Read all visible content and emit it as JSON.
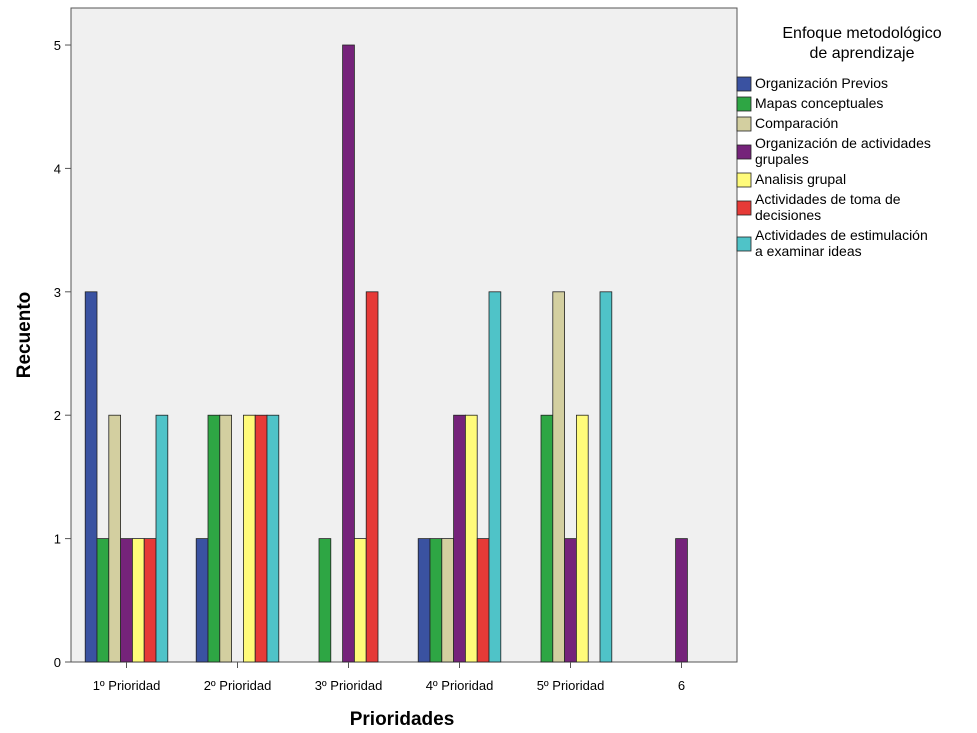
{
  "chart_data": {
    "type": "bar",
    "xlabel": "Prioridades",
    "ylabel": "Recuento",
    "categories": [
      "1º Prioridad",
      "2º Prioridad",
      "3º Prioridad",
      "4º Prioridad",
      "5º Prioridad",
      "6"
    ],
    "y_ticks": [
      "0",
      "1",
      "2",
      "3",
      "4",
      "5"
    ],
    "ylim": [
      0,
      5.3
    ],
    "grid": false,
    "legend": {
      "title_lines": [
        "Enfoque metodológico",
        "de aprendizaje"
      ],
      "placement": "right"
    },
    "series": [
      {
        "name": "Organización Previos",
        "label_lines": [
          "Organización Previos"
        ],
        "color": "#3a52a1",
        "values": [
          3,
          1,
          0,
          1,
          0,
          0
        ]
      },
      {
        "name": "Mapas conceptuales",
        "label_lines": [
          "Mapas conceptuales"
        ],
        "color": "#2ea644",
        "values": [
          1,
          2,
          1,
          1,
          2,
          0
        ]
      },
      {
        "name": "Comparación",
        "label_lines": [
          "Comparación"
        ],
        "color": "#d3cfa0",
        "values": [
          2,
          2,
          0,
          1,
          3,
          0
        ]
      },
      {
        "name": "Organización de actividades grupales",
        "label_lines": [
          "Organización de actividades",
          "grupales"
        ],
        "color": "#75237a",
        "values": [
          1,
          0,
          5,
          2,
          1,
          1
        ]
      },
      {
        "name": "Analisis grupal",
        "label_lines": [
          "Analisis grupal"
        ],
        "color": "#fffb7a",
        "values": [
          1,
          2,
          1,
          2,
          2,
          0
        ]
      },
      {
        "name": "Actividades de toma de decisiones",
        "label_lines": [
          "Actividades de toma de",
          "decisiones"
        ],
        "color": "#e63a37",
        "values": [
          1,
          2,
          3,
          1,
          0,
          0
        ]
      },
      {
        "name": "Actividades de estimulación a examinar ideas",
        "label_lines": [
          "Actividades de estimulación",
          "a examinar ideas"
        ],
        "color": "#4fc3c8",
        "values": [
          2,
          2,
          0,
          3,
          3,
          0
        ]
      }
    ]
  }
}
